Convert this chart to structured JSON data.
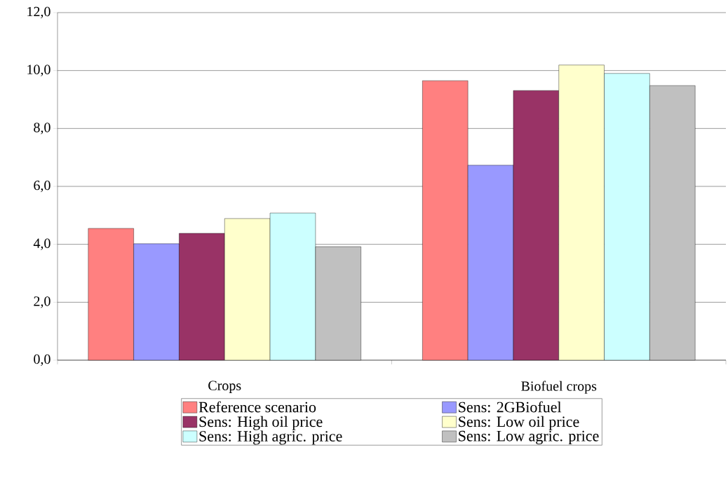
{
  "chart_data": {
    "type": "bar",
    "categories": [
      "Crops",
      "Biofuel crops"
    ],
    "series": [
      {
        "name": "Reference scenario",
        "color": "#ff8080",
        "values": [
          4.55,
          9.65
        ]
      },
      {
        "name": "Sens: 2GBiofuel",
        "color": "#9999ff",
        "values": [
          4.02,
          6.73
        ]
      },
      {
        "name": "Sens: High oil price",
        "color": "#993366",
        "values": [
          4.38,
          9.31
        ]
      },
      {
        "name": "Sens: Low oil price",
        "color": "#ffffcc",
        "values": [
          4.89,
          10.19
        ]
      },
      {
        "name": "Sens: High agric. price",
        "color": "#ccffff",
        "values": [
          5.08,
          9.9
        ]
      },
      {
        "name": "Sens: Low agric. price",
        "color": "#c0c0c0",
        "values": [
          3.92,
          9.48
        ]
      }
    ],
    "ylim": [
      0,
      12
    ],
    "yticks": [
      {
        "value": 0,
        "label": "0,0"
      },
      {
        "value": 2,
        "label": "2,0"
      },
      {
        "value": 4,
        "label": "4,0"
      },
      {
        "value": 6,
        "label": "6,0"
      },
      {
        "value": 8,
        "label": "8,0"
      },
      {
        "value": 10,
        "label": "10,0"
      },
      {
        "value": 12,
        "label": "12,0"
      }
    ],
    "grid": "y",
    "legend": "bottom"
  }
}
